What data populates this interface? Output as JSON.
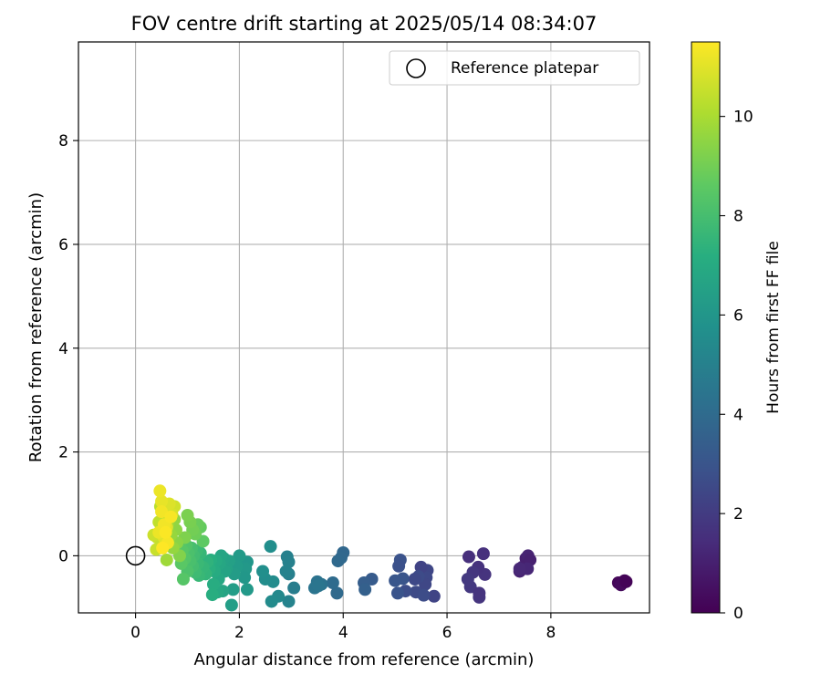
{
  "chart_data": {
    "type": "scatter",
    "title": "FOV centre drift starting at 2025/05/14 08:34:07",
    "xlabel": "Angular distance from reference (arcmin)",
    "ylabel": "Rotation from reference (arcmin)",
    "xlim": [
      -1.1,
      9.9
    ],
    "ylim": [
      -1.1,
      9.9
    ],
    "x_ticks": [
      0,
      2,
      4,
      6,
      8
    ],
    "y_ticks": [
      0,
      2,
      4,
      6,
      8
    ],
    "grid": true,
    "legend": {
      "placement": "top-right",
      "entries": [
        "Reference platepar"
      ]
    },
    "reference_point": {
      "name": "Reference platepar",
      "x": 0,
      "y": 0
    },
    "colorbar": {
      "label": "Hours from first FF file",
      "colormap": "viridis",
      "range": [
        0,
        11.5
      ],
      "ticks": [
        0,
        2,
        4,
        6,
        8,
        10
      ]
    },
    "points": [
      {
        "x": 9.3,
        "y": -0.52,
        "c": 0.2
      },
      {
        "x": 9.42,
        "y": -0.48,
        "c": 0.15
      },
      {
        "x": 9.35,
        "y": -0.56,
        "c": 0.3
      },
      {
        "x": 9.45,
        "y": -0.5,
        "c": 0.1
      },
      {
        "x": 7.4,
        "y": -0.3,
        "c": 1.1
      },
      {
        "x": 7.45,
        "y": -0.22,
        "c": 1.2
      },
      {
        "x": 7.52,
        "y": -0.05,
        "c": 1.0
      },
      {
        "x": 7.56,
        "y": 0.0,
        "c": 1.15
      },
      {
        "x": 7.6,
        "y": -0.08,
        "c": 1.05
      },
      {
        "x": 7.55,
        "y": -0.25,
        "c": 1.25
      },
      {
        "x": 7.4,
        "y": -0.25,
        "c": 1.3
      },
      {
        "x": 6.7,
        "y": 0.04,
        "c": 1.6
      },
      {
        "x": 6.73,
        "y": -0.36,
        "c": 1.7
      },
      {
        "x": 6.6,
        "y": -0.22,
        "c": 1.65
      },
      {
        "x": 6.62,
        "y": -0.8,
        "c": 1.75
      },
      {
        "x": 6.5,
        "y": -0.32,
        "c": 1.8
      },
      {
        "x": 6.45,
        "y": -0.6,
        "c": 1.85
      },
      {
        "x": 6.42,
        "y": -0.02,
        "c": 1.55
      },
      {
        "x": 6.4,
        "y": -0.45,
        "c": 1.9
      },
      {
        "x": 6.62,
        "y": -0.72,
        "c": 1.7
      },
      {
        "x": 5.62,
        "y": -0.28,
        "c": 2.4
      },
      {
        "x": 5.6,
        "y": -0.42,
        "c": 2.5
      },
      {
        "x": 5.58,
        "y": -0.55,
        "c": 2.45
      },
      {
        "x": 5.5,
        "y": -0.22,
        "c": 2.3
      },
      {
        "x": 5.45,
        "y": -0.4,
        "c": 2.6
      },
      {
        "x": 5.4,
        "y": -0.7,
        "c": 2.55
      },
      {
        "x": 5.38,
        "y": -0.45,
        "c": 2.5
      },
      {
        "x": 5.75,
        "y": -0.78,
        "c": 2.35
      },
      {
        "x": 5.55,
        "y": -0.76,
        "c": 2.65
      },
      {
        "x": 5.2,
        "y": -0.68,
        "c": 2.7
      },
      {
        "x": 5.1,
        "y": -0.08,
        "c": 2.9
      },
      {
        "x": 5.07,
        "y": -0.2,
        "c": 2.85
      },
      {
        "x": 5.15,
        "y": -0.44,
        "c": 3.0
      },
      {
        "x": 5.05,
        "y": -0.72,
        "c": 2.95
      },
      {
        "x": 5.0,
        "y": -0.48,
        "c": 3.05
      },
      {
        "x": 4.55,
        "y": -0.45,
        "c": 3.3
      },
      {
        "x": 4.4,
        "y": -0.52,
        "c": 3.4
      },
      {
        "x": 4.42,
        "y": -0.65,
        "c": 3.5
      },
      {
        "x": 4.0,
        "y": 0.06,
        "c": 3.8
      },
      {
        "x": 3.96,
        "y": -0.04,
        "c": 3.85
      },
      {
        "x": 3.9,
        "y": -0.1,
        "c": 3.9
      },
      {
        "x": 3.88,
        "y": -0.72,
        "c": 3.95
      },
      {
        "x": 3.8,
        "y": -0.52,
        "c": 4.0
      },
      {
        "x": 3.58,
        "y": -0.55,
        "c": 4.3
      },
      {
        "x": 3.5,
        "y": -0.5,
        "c": 4.35
      },
      {
        "x": 3.45,
        "y": -0.62,
        "c": 4.4
      },
      {
        "x": 3.52,
        "y": -0.58,
        "c": 4.45
      },
      {
        "x": 3.05,
        "y": -0.62,
        "c": 4.8
      },
      {
        "x": 2.95,
        "y": -0.35,
        "c": 4.9
      },
      {
        "x": 2.92,
        "y": -0.02,
        "c": 4.95
      },
      {
        "x": 2.95,
        "y": -0.12,
        "c": 5.0
      },
      {
        "x": 2.9,
        "y": -0.3,
        "c": 5.05
      },
      {
        "x": 2.95,
        "y": -0.88,
        "c": 5.1
      },
      {
        "x": 2.75,
        "y": -0.78,
        "c": 5.4
      },
      {
        "x": 2.65,
        "y": -0.5,
        "c": 5.5
      },
      {
        "x": 2.62,
        "y": -0.88,
        "c": 5.45
      },
      {
        "x": 2.6,
        "y": 0.18,
        "c": 5.6
      },
      {
        "x": 2.5,
        "y": -0.45,
        "c": 5.55
      },
      {
        "x": 2.45,
        "y": -0.3,
        "c": 5.65
      },
      {
        "x": 2.15,
        "y": -0.12,
        "c": 6.0
      },
      {
        "x": 2.12,
        "y": -0.25,
        "c": 6.1
      },
      {
        "x": 2.1,
        "y": -0.42,
        "c": 6.05
      },
      {
        "x": 2.15,
        "y": -0.65,
        "c": 6.15
      },
      {
        "x": 2.0,
        "y": 0.0,
        "c": 6.2
      },
      {
        "x": 1.95,
        "y": -0.2,
        "c": 6.25
      },
      {
        "x": 1.9,
        "y": -0.35,
        "c": 6.3
      },
      {
        "x": 1.88,
        "y": -0.65,
        "c": 6.35
      },
      {
        "x": 1.85,
        "y": -0.95,
        "c": 6.4
      },
      {
        "x": 1.8,
        "y": -0.1,
        "c": 6.5
      },
      {
        "x": 1.75,
        "y": -0.25,
        "c": 6.55
      },
      {
        "x": 1.7,
        "y": -0.05,
        "c": 6.6
      },
      {
        "x": 1.72,
        "y": -0.3,
        "c": 6.65
      },
      {
        "x": 1.68,
        "y": -0.68,
        "c": 6.7
      },
      {
        "x": 1.65,
        "y": 0.0,
        "c": 6.75
      },
      {
        "x": 1.62,
        "y": -0.15,
        "c": 6.8
      },
      {
        "x": 1.6,
        "y": -0.45,
        "c": 6.85
      },
      {
        "x": 1.58,
        "y": -0.7,
        "c": 6.9
      },
      {
        "x": 1.55,
        "y": -0.1,
        "c": 7.0
      },
      {
        "x": 1.52,
        "y": -0.3,
        "c": 7.05
      },
      {
        "x": 1.5,
        "y": -0.55,
        "c": 7.1
      },
      {
        "x": 1.48,
        "y": -0.75,
        "c": 7.15
      },
      {
        "x": 1.45,
        "y": -0.08,
        "c": 7.2
      },
      {
        "x": 1.42,
        "y": -0.25,
        "c": 7.25
      },
      {
        "x": 1.38,
        "y": -0.12,
        "c": 7.4
      },
      {
        "x": 1.35,
        "y": -0.35,
        "c": 7.5
      },
      {
        "x": 1.3,
        "y": -0.22,
        "c": 7.55
      },
      {
        "x": 1.25,
        "y": 0.05,
        "c": 7.6
      },
      {
        "x": 1.22,
        "y": -0.38,
        "c": 7.65
      },
      {
        "x": 1.2,
        "y": -0.15,
        "c": 7.7
      },
      {
        "x": 1.18,
        "y": 0.1,
        "c": 7.75
      },
      {
        "x": 1.15,
        "y": -0.32,
        "c": 7.8
      },
      {
        "x": 1.12,
        "y": 0.0,
        "c": 7.9
      },
      {
        "x": 1.1,
        "y": -0.2,
        "c": 7.95
      },
      {
        "x": 1.08,
        "y": 0.15,
        "c": 8.0
      },
      {
        "x": 1.05,
        "y": -0.1,
        "c": 8.1
      },
      {
        "x": 1.02,
        "y": 0.05,
        "c": 8.15
      },
      {
        "x": 1.0,
        "y": -0.3,
        "c": 8.2
      },
      {
        "x": 0.98,
        "y": 0.2,
        "c": 8.3
      },
      {
        "x": 0.95,
        "y": -0.05,
        "c": 8.35
      },
      {
        "x": 0.92,
        "y": -0.45,
        "c": 8.4
      },
      {
        "x": 0.9,
        "y": 0.1,
        "c": 8.45
      },
      {
        "x": 0.88,
        "y": -0.15,
        "c": 8.5
      },
      {
        "x": 1.3,
        "y": 0.28,
        "c": 8.6
      },
      {
        "x": 1.25,
        "y": 0.55,
        "c": 8.7
      },
      {
        "x": 1.2,
        "y": 0.6,
        "c": 8.8
      },
      {
        "x": 1.15,
        "y": 0.42,
        "c": 8.9
      },
      {
        "x": 1.1,
        "y": 0.5,
        "c": 9.0
      },
      {
        "x": 1.05,
        "y": 0.65,
        "c": 9.1
      },
      {
        "x": 1.0,
        "y": 0.78,
        "c": 9.15
      },
      {
        "x": 0.95,
        "y": 0.35,
        "c": 9.2
      },
      {
        "x": 0.85,
        "y": 0.0,
        "c": 9.3
      },
      {
        "x": 0.8,
        "y": 0.25,
        "c": 9.4
      },
      {
        "x": 0.78,
        "y": 0.5,
        "c": 9.5
      },
      {
        "x": 0.75,
        "y": 0.7,
        "c": 9.55
      },
      {
        "x": 0.72,
        "y": 0.15,
        "c": 9.6
      },
      {
        "x": 0.68,
        "y": 0.4,
        "c": 9.65
      },
      {
        "x": 0.65,
        "y": 0.85,
        "c": 9.7
      },
      {
        "x": 0.62,
        "y": 0.6,
        "c": 9.75
      },
      {
        "x": 0.6,
        "y": -0.08,
        "c": 9.8
      },
      {
        "x": 0.58,
        "y": 0.3,
        "c": 9.9
      },
      {
        "x": 0.55,
        "y": 0.75,
        "c": 10.0
      },
      {
        "x": 0.52,
        "y": 0.5,
        "c": 10.1
      },
      {
        "x": 0.5,
        "y": 0.2,
        "c": 10.2
      },
      {
        "x": 0.48,
        "y": 0.95,
        "c": 10.3
      },
      {
        "x": 0.45,
        "y": 0.65,
        "c": 10.4
      },
      {
        "x": 0.42,
        "y": 0.35,
        "c": 10.5
      },
      {
        "x": 0.4,
        "y": 0.12,
        "c": 10.55
      },
      {
        "x": 0.35,
        "y": 0.4,
        "c": 10.6
      },
      {
        "x": 0.75,
        "y": 0.95,
        "c": 10.7
      },
      {
        "x": 0.7,
        "y": 0.8,
        "c": 10.8
      },
      {
        "x": 0.65,
        "y": 1.0,
        "c": 10.9
      },
      {
        "x": 0.6,
        "y": 0.55,
        "c": 11.0
      },
      {
        "x": 0.55,
        "y": 0.35,
        "c": 11.0
      },
      {
        "x": 0.5,
        "y": 1.05,
        "c": 11.1
      },
      {
        "x": 0.47,
        "y": 1.25,
        "c": 11.2
      },
      {
        "x": 0.45,
        "y": 0.45,
        "c": 11.2
      },
      {
        "x": 0.5,
        "y": 0.85,
        "c": 11.3
      },
      {
        "x": 0.55,
        "y": 0.6,
        "c": 11.3
      },
      {
        "x": 0.62,
        "y": 0.25,
        "c": 11.35
      },
      {
        "x": 0.68,
        "y": 0.75,
        "c": 11.4
      },
      {
        "x": 0.58,
        "y": 0.45,
        "c": 11.45
      },
      {
        "x": 0.52,
        "y": 0.15,
        "c": 11.5
      }
    ]
  }
}
